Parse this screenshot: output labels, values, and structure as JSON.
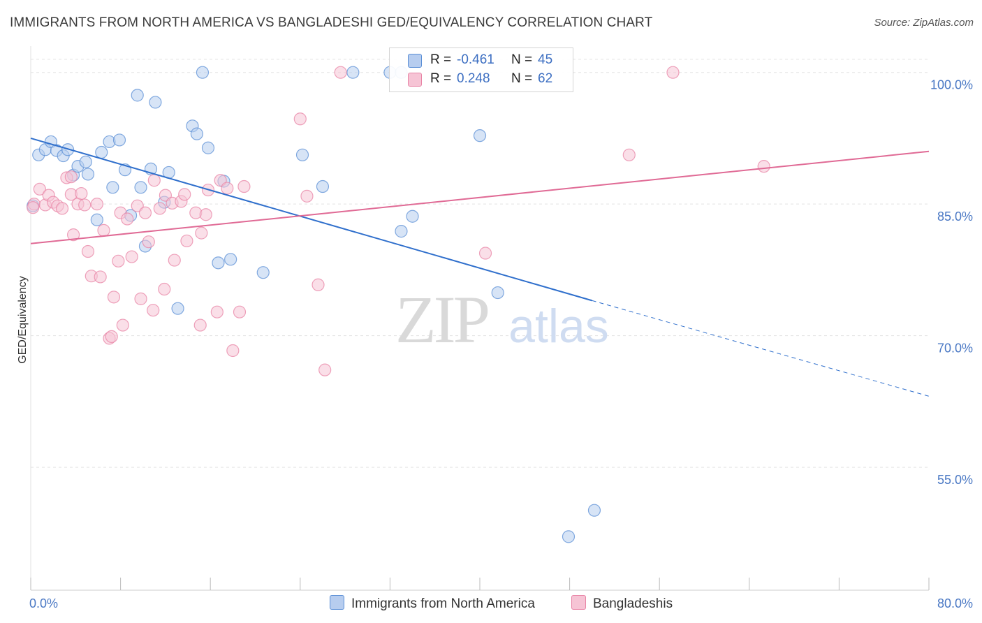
{
  "title": "IMMIGRANTS FROM NORTH AMERICA VS BANGLADESHI GED/EQUIVALENCY CORRELATION CHART",
  "source": "Source: ZipAtlas.com",
  "watermark": {
    "zip": "ZIP",
    "atlas": "atlas"
  },
  "colors": {
    "blue": "#5b8fd6",
    "blue_fill": "#b7cdef",
    "blue_line": "#2f6fcc",
    "pink": "#e884a6",
    "pink_fill": "#f6c4d5",
    "pink_line": "#e06a95",
    "grid": "#e3e3e3",
    "label": "#4a78c4"
  },
  "legend": {
    "rows": [
      {
        "r_label": "R =",
        "r_value": "-0.461",
        "n_label": "N =",
        "n_value": "45"
      },
      {
        "r_label": "R =",
        "r_value": "0.248",
        "n_label": "N =",
        "n_value": "62"
      }
    ]
  },
  "chart_data": {
    "type": "scatter",
    "title": "IMMIGRANTS FROM NORTH AMERICA VS BANGLADESHI GED/EQUIVALENCY CORRELATION CHART",
    "xlabel": "",
    "ylabel": "GED/Equivalency",
    "xlim": [
      0,
      80
    ],
    "ylim": [
      41,
      103
    ],
    "x_tick_labels": [
      "0.0%",
      "80.0%"
    ],
    "y_ticks": [
      55,
      70,
      85,
      100
    ],
    "y_tick_labels": [
      "55.0%",
      "70.0%",
      "85.0%",
      "100.0%"
    ],
    "grid": true,
    "legend_position": "top-center",
    "series": [
      {
        "name": "Immigrants from North America",
        "color": "#5b8fd6",
        "points": [
          [
            0.2,
            84.8
          ],
          [
            0.7,
            90.6
          ],
          [
            1.3,
            91.2
          ],
          [
            1.8,
            92.1
          ],
          [
            2.3,
            91.1
          ],
          [
            2.9,
            90.5
          ],
          [
            3.3,
            91.2
          ],
          [
            3.8,
            88.3
          ],
          [
            4.2,
            89.3
          ],
          [
            4.9,
            89.8
          ],
          [
            5.1,
            88.4
          ],
          [
            5.9,
            83.2
          ],
          [
            6.3,
            90.9
          ],
          [
            7.0,
            92.1
          ],
          [
            7.3,
            86.9
          ],
          [
            7.9,
            92.3
          ],
          [
            8.4,
            88.9
          ],
          [
            8.9,
            83.7
          ],
          [
            9.5,
            97.4
          ],
          [
            9.8,
            86.9
          ],
          [
            10.2,
            80.2
          ],
          [
            10.7,
            89.0
          ],
          [
            11.1,
            96.6
          ],
          [
            11.9,
            85.2
          ],
          [
            12.3,
            88.6
          ],
          [
            13.1,
            73.1
          ],
          [
            14.4,
            93.9
          ],
          [
            14.8,
            93.0
          ],
          [
            15.3,
            100.0
          ],
          [
            15.8,
            91.4
          ],
          [
            16.7,
            78.3
          ],
          [
            17.2,
            87.6
          ],
          [
            17.8,
            78.7
          ],
          [
            20.7,
            77.2
          ],
          [
            24.2,
            90.6
          ],
          [
            26.0,
            87.0
          ],
          [
            28.7,
            100.0
          ],
          [
            32.0,
            100.0
          ],
          [
            33.0,
            100.0
          ],
          [
            33.0,
            81.9
          ],
          [
            34.0,
            83.6
          ],
          [
            40.0,
            92.8
          ],
          [
            41.6,
            74.9
          ],
          [
            50.2,
            50.1
          ],
          [
            47.9,
            47.1
          ]
        ],
        "trend": {
          "x": [
            0,
            50
          ],
          "y": [
            92.5,
            74.0
          ],
          "dashed_to": [
            80,
            63.1
          ]
        }
      },
      {
        "name": "Bangladeshis",
        "color": "#e884a6",
        "points": [
          [
            0.3,
            85.0
          ],
          [
            0.8,
            86.7
          ],
          [
            1.3,
            84.9
          ],
          [
            1.6,
            86.0
          ],
          [
            2.0,
            85.2
          ],
          [
            2.4,
            84.8
          ],
          [
            2.8,
            84.5
          ],
          [
            3.2,
            88.0
          ],
          [
            3.6,
            88.1
          ],
          [
            3.6,
            86.1
          ],
          [
            3.8,
            81.5
          ],
          [
            4.2,
            85.0
          ],
          [
            4.5,
            86.2
          ],
          [
            4.8,
            84.9
          ],
          [
            5.1,
            79.6
          ],
          [
            5.4,
            76.8
          ],
          [
            5.9,
            85.0
          ],
          [
            6.2,
            76.7
          ],
          [
            6.5,
            82.0
          ],
          [
            7.0,
            69.7
          ],
          [
            7.2,
            69.9
          ],
          [
            7.4,
            74.4
          ],
          [
            7.8,
            78.5
          ],
          [
            8.0,
            84.0
          ],
          [
            8.2,
            71.2
          ],
          [
            8.6,
            83.3
          ],
          [
            9.0,
            79.0
          ],
          [
            9.5,
            84.8
          ],
          [
            9.8,
            74.2
          ],
          [
            10.2,
            84.0
          ],
          [
            10.5,
            80.7
          ],
          [
            10.9,
            72.9
          ],
          [
            11.0,
            87.7
          ],
          [
            11.5,
            84.5
          ],
          [
            11.9,
            75.3
          ],
          [
            12.0,
            86.0
          ],
          [
            12.6,
            85.1
          ],
          [
            12.8,
            78.6
          ],
          [
            13.4,
            85.3
          ],
          [
            13.7,
            86.1
          ],
          [
            13.9,
            80.8
          ],
          [
            14.7,
            84.0
          ],
          [
            15.2,
            81.7
          ],
          [
            15.1,
            71.2
          ],
          [
            15.6,
            83.8
          ],
          [
            15.8,
            86.6
          ],
          [
            16.6,
            72.7
          ],
          [
            16.9,
            87.7
          ],
          [
            17.5,
            86.8
          ],
          [
            18.0,
            68.3
          ],
          [
            18.6,
            72.7
          ],
          [
            19.0,
            87.0
          ],
          [
            24.0,
            94.7
          ],
          [
            24.6,
            85.9
          ],
          [
            25.6,
            75.8
          ],
          [
            26.2,
            66.1
          ],
          [
            27.6,
            100.0
          ],
          [
            40.5,
            79.4
          ],
          [
            53.3,
            90.6
          ],
          [
            57.2,
            100.0
          ],
          [
            65.3,
            89.3
          ],
          [
            0.2,
            84.6
          ]
        ],
        "trend": {
          "x": [
            0,
            80
          ],
          "y": [
            80.5,
            91.0
          ]
        }
      }
    ]
  },
  "bottom_legend": [
    {
      "label": "Immigrants from North America"
    },
    {
      "label": "Bangladeshis"
    }
  ]
}
